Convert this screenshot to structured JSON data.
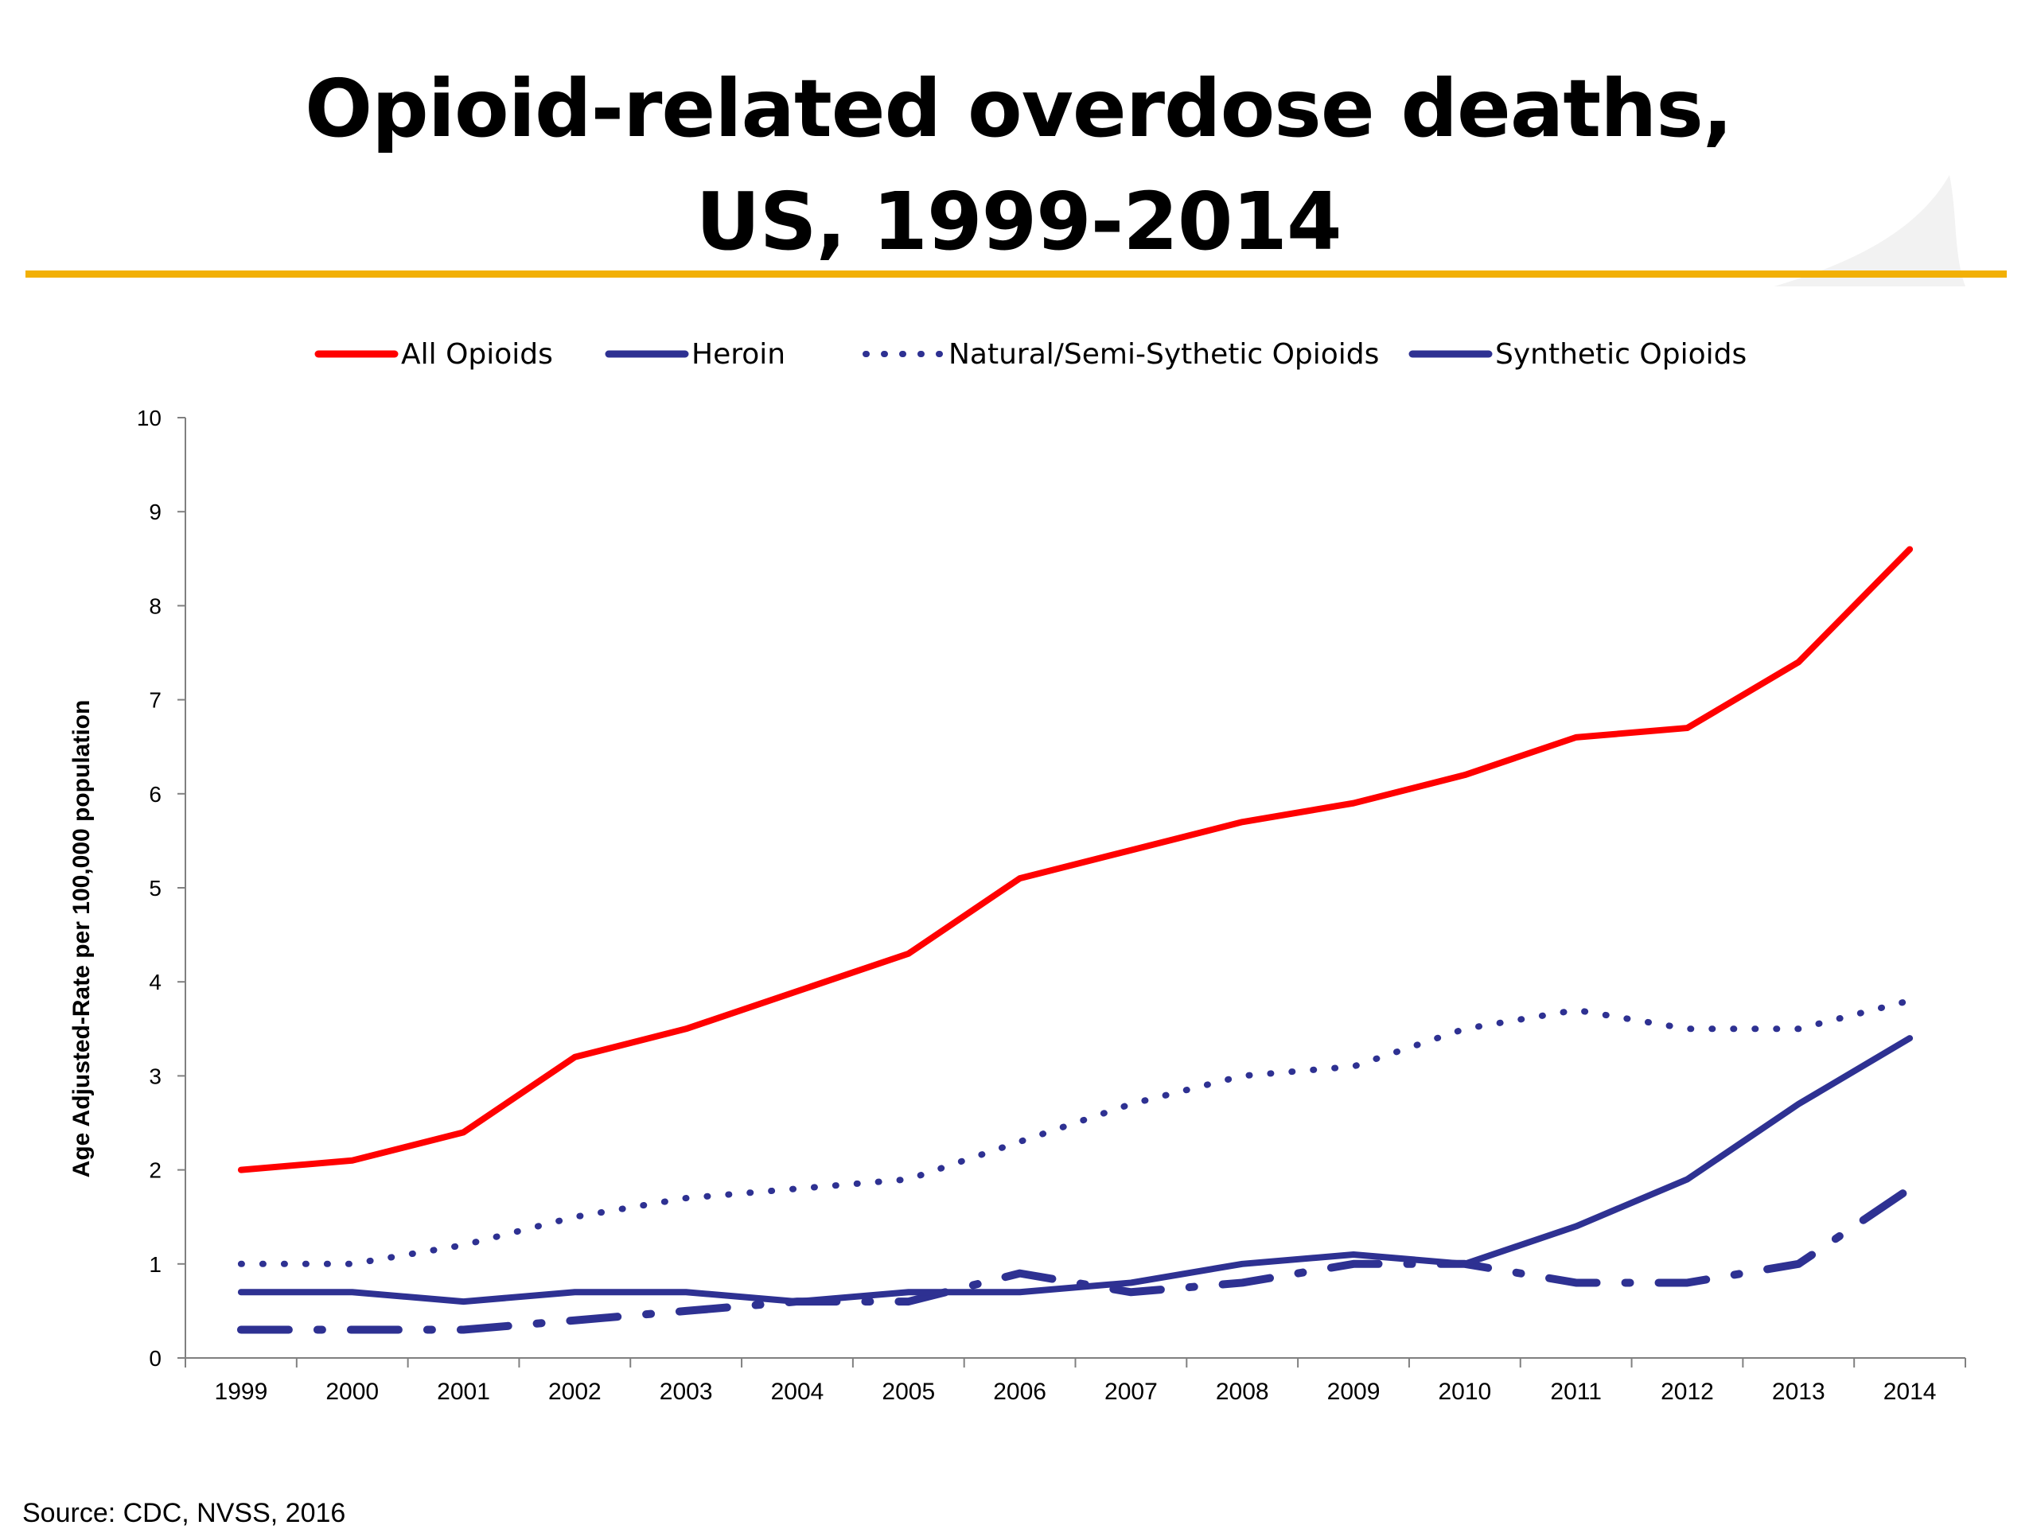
{
  "slide": {
    "title_line1": "Opioid-related overdose deaths,",
    "title_line2": "US, 1999-2014",
    "source": "Source: CDC, NVSS, 2016",
    "accent_color": "#f2b005"
  },
  "chart_data": {
    "type": "line",
    "title": "",
    "xlabel": "",
    "ylabel": "Age Adjusted-Rate per 100,000 population",
    "ylim": [
      0,
      10
    ],
    "yticks": [
      "0",
      "1",
      "2",
      "3",
      "4",
      "5",
      "6",
      "7",
      "8",
      "9",
      "10"
    ],
    "categories": [
      "1999",
      "2000",
      "2001",
      "2002",
      "2003",
      "2004",
      "2005",
      "2006",
      "2007",
      "2008",
      "2009",
      "2010",
      "2011",
      "2012",
      "2013",
      "2014"
    ],
    "grid": false,
    "legend_position": "top",
    "series": [
      {
        "name": "All Opioids",
        "color": "#ff0000",
        "style": "solid",
        "values": [
          2.0,
          2.1,
          2.4,
          3.2,
          3.5,
          3.9,
          4.3,
          5.1,
          5.4,
          5.7,
          5.9,
          6.2,
          6.6,
          6.7,
          7.4,
          8.6
        ]
      },
      {
        "name": "Heroin",
        "color": "#2e3192",
        "style": "solid",
        "values": [
          0.7,
          0.7,
          0.6,
          0.7,
          0.7,
          0.6,
          0.7,
          0.7,
          0.8,
          1.0,
          1.1,
          1.0,
          1.4,
          1.9,
          2.7,
          3.4
        ]
      },
      {
        "name": "Natural/Semi-Sythetic Opioids",
        "color": "#2e3192",
        "style": "dotted",
        "values": [
          1.0,
          1.0,
          1.2,
          1.5,
          1.7,
          1.8,
          1.9,
          2.3,
          2.7,
          3.0,
          3.1,
          3.5,
          3.7,
          3.5,
          3.5,
          3.8
        ]
      },
      {
        "name": "Synthetic Opioids",
        "color": "#2e3192",
        "style": "dashdot",
        "values": [
          0.3,
          0.3,
          0.3,
          0.4,
          0.5,
          0.6,
          0.6,
          0.9,
          0.7,
          0.8,
          1.0,
          1.0,
          0.8,
          0.8,
          1.0,
          1.8
        ]
      }
    ]
  }
}
